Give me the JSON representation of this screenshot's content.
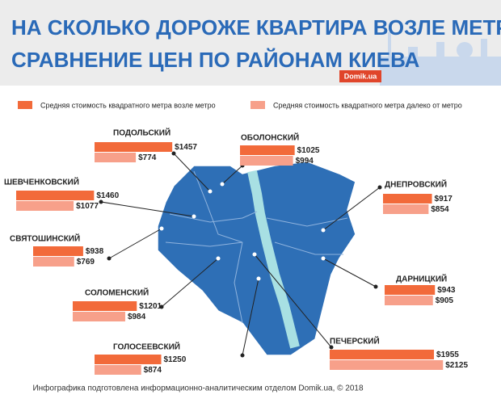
{
  "chart_data": {
    "type": "bar",
    "title": "НА СКОЛЬКО ДОРОЖЕ КВАРТИРА ВОЗЛЕ МЕТРО:",
    "subtitle": "СРАВНЕНИЕ ЦЕН ПО РАЙОНАМ КИЕВА",
    "brand": "Domik.ua",
    "footer": "Инфографика подготовлена информационно-аналитическим отделом Domik.ua, ©  2018",
    "categories": [
      "ПОДОЛЬСКИЙ",
      "ОБОЛОНСКИЙ",
      "ШЕВЧЕНКОВСКИЙ",
      "ДНЕПРОВСКИЙ",
      "СВЯТОШИНСКИЙ",
      "ДАРНИЦКИЙ",
      "СОЛОМЕНСКИЙ",
      "ГОЛОСЕЕВСКИЙ",
      "ПЕЧЕРСКИЙ"
    ],
    "series": [
      {
        "name": "Средняя стоимость квадратного метра возле метро",
        "color": "#f26a3a",
        "values": [
          1457,
          1025,
          1460,
          917,
          938,
          943,
          1201,
          1250,
          1955
        ],
        "value_labels": [
          "$1457",
          "$1025",
          "$1460",
          "$917",
          "$938",
          "$943",
          "$1201",
          "$1250",
          "$1955"
        ]
      },
      {
        "name": "Средняя стоимость квадратного метра далеко от метро",
        "color": "#f7a08a",
        "values": [
          774,
          994,
          1077,
          854,
          769,
          905,
          984,
          874,
          2125
        ],
        "value_labels": [
          "$774",
          "$994",
          "$1077",
          "$854",
          "$769",
          "$905",
          "$984",
          "$874",
          "$2125"
        ]
      }
    ]
  }
}
